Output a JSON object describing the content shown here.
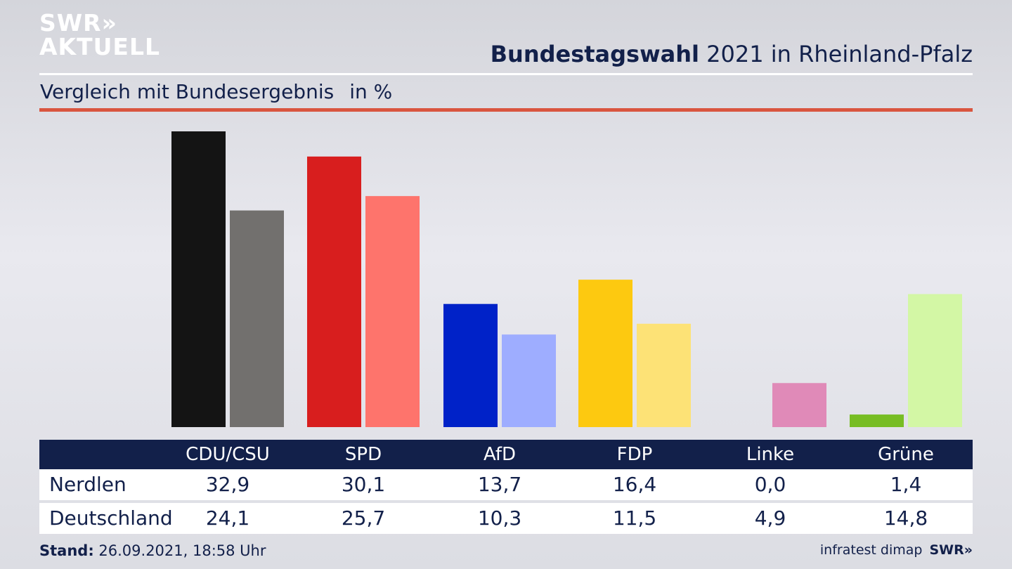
{
  "logo": {
    "line1": "SWR»",
    "line2": "AKTUELL"
  },
  "header": {
    "title_bold": "Bundestagswahl",
    "title_rest": " 2021 in Rheinland-Pfalz",
    "subtitle": "Vergleich mit Bundesergebnis",
    "unit": "in %"
  },
  "chart_data": {
    "type": "bar",
    "title": "Bundestagswahl 2021 in Rheinland-Pfalz",
    "subtitle": "Vergleich mit Bundesergebnis",
    "ylabel": "in %",
    "categories": [
      "CDU/CSU",
      "SPD",
      "AfD",
      "FDP",
      "Linke",
      "Grüne"
    ],
    "series": [
      {
        "name": "Nerdlen",
        "values": [
          32.9,
          30.1,
          13.7,
          16.4,
          0.0,
          1.4
        ],
        "colors": [
          "#141414",
          "#d81e1e",
          "#0022c8",
          "#fdc910",
          "#e08ab8",
          "#77bd23"
        ]
      },
      {
        "name": "Deutschland",
        "values": [
          24.1,
          25.7,
          10.3,
          11.5,
          4.9,
          14.8
        ],
        "colors": [
          "#72706e",
          "#fe746c",
          "#9eadff",
          "#fde276",
          "#e08ab8",
          "#d3f7a5"
        ]
      }
    ],
    "ylim": [
      0,
      32.9
    ],
    "grid": false
  },
  "table": {
    "headers": [
      "CDU/CSU",
      "SPD",
      "AfD",
      "FDP",
      "Linke",
      "Grüne"
    ],
    "rows": [
      {
        "label": "Nerdlen",
        "values": [
          "32,9",
          "30,1",
          "13,7",
          "16,4",
          "0,0",
          "1,4"
        ]
      },
      {
        "label": "Deutschland",
        "values": [
          "24,1",
          "25,7",
          "10,3",
          "11,5",
          "4,9",
          "14,8"
        ]
      }
    ]
  },
  "footer": {
    "stand_label": "Stand:",
    "stand_value": " 26.09.2021, 18:58 Uhr",
    "source": "infratest dimap",
    "brand": "SWR»"
  }
}
